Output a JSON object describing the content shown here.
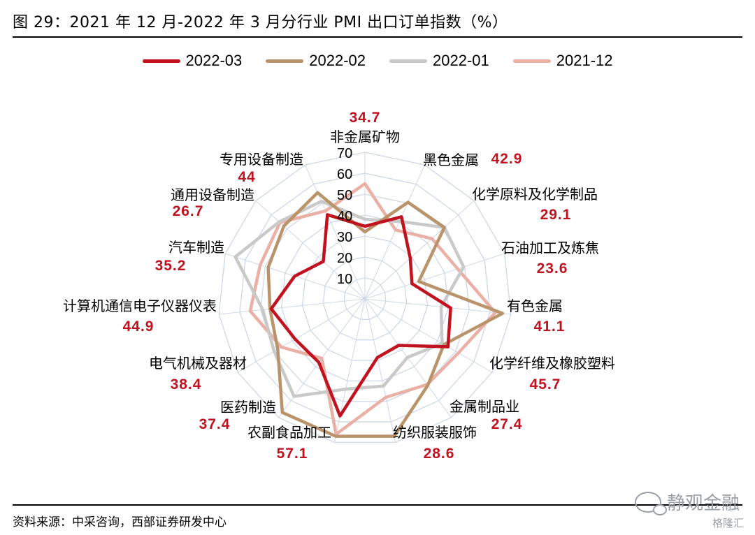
{
  "title": "图 29：2021 年 12 月-2022 年 3 月分行业 PMI 出口订单指数（%）",
  "source": "资料来源：中采咨询，西部证券研发中心",
  "watermark": {
    "main": "静观金融",
    "sub": "格隆汇"
  },
  "colors": {
    "s2022_03": "#c0121f",
    "s2022_02": "#b9946a",
    "s2022_01": "#c9c9c9",
    "s2021_12": "#eab0a6",
    "value_label": "#c0121f",
    "grid": "#cfd8e6"
  },
  "chart_data": {
    "type": "radar",
    "rlim": [
      0,
      70
    ],
    "rticks": [
      10,
      20,
      30,
      40,
      50,
      60,
      70
    ],
    "grid": true,
    "legend_position": "top",
    "categories": [
      "非金属矿物",
      "黑色金属",
      "化学原料及化学制品",
      "石油加工及炼焦",
      "有色金属",
      "化学纤维及橡胶塑料",
      "金属制品业",
      "纺织服装服饰",
      "农副食品加工",
      "医药制造",
      "电气机械及器材",
      "计算机通信电子仪器仪表",
      "汽车制造",
      "通用设备制造",
      "专用设备制造"
    ],
    "value_labels": [
      "34.7",
      "42.9",
      "29.1",
      "23.6",
      "41.1",
      "45.7",
      "27.4",
      "28.6",
      "57.1",
      "37.4",
      "38.4",
      "44.9",
      "35.2",
      "26.7",
      "44"
    ],
    "series": [
      {
        "name": "2022-03",
        "values": [
          34.7,
          42.9,
          29.1,
          23.6,
          41.1,
          45.7,
          27.4,
          28.6,
          57.1,
          37.4,
          38.4,
          44.9,
          35.2,
          26.7,
          44.0
        ]
      },
      {
        "name": "2022-02",
        "values": [
          32.0,
          50.5,
          51.0,
          27.0,
          66.0,
          43.5,
          51.0,
          67.0,
          67.0,
          67.0,
          48.0,
          45.5,
          48.5,
          52.0,
          55.5
        ]
      },
      {
        "name": "2022-01",
        "values": [
          38.0,
          40.5,
          51.0,
          49.5,
          36.5,
          42.5,
          34.5,
          42.5,
          44.0,
          57.5,
          50.0,
          49.0,
          65.0,
          55.0,
          51.0
        ]
      },
      {
        "name": "2021-12",
        "values": [
          55.0,
          36.0,
          43.0,
          46.5,
          62.5,
          51.5,
          50.5,
          48.0,
          66.0,
          35.0,
          46.0,
          55.0,
          52.5,
          54.5,
          46.0
        ]
      }
    ]
  }
}
